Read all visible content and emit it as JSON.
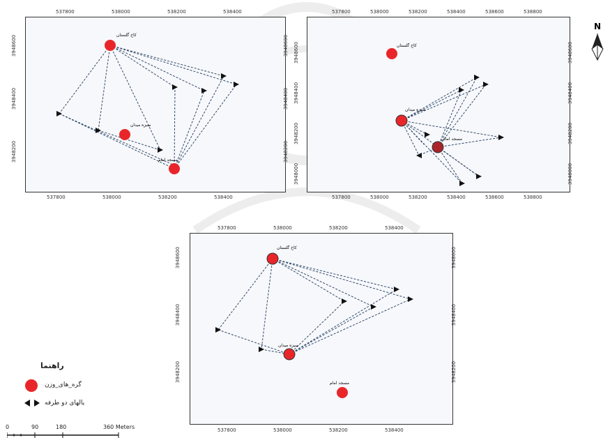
{
  "maps": [
    {
      "id": "top-left",
      "x_ticks_top": [
        "537800",
        "538000",
        "538200",
        "538400"
      ],
      "x_ticks_bottom": [
        "537800",
        "538000",
        "538200",
        "538400"
      ],
      "y_ticks_left": [
        "3948600",
        "3948400",
        "3948200"
      ],
      "y_ticks_right": [
        "3948600",
        "3948400",
        "3948200"
      ],
      "places": [
        {
          "label": "کاخ گلستان",
          "role": "node"
        },
        {
          "label": "سبزه میدان",
          "role": "node"
        },
        {
          "label": "مسجد امام",
          "role": "node"
        }
      ]
    },
    {
      "id": "top-right",
      "x_ticks_top": [
        "537800",
        "538000",
        "538200",
        "538400",
        "538600",
        "538800"
      ],
      "x_ticks_bottom": [
        "537800",
        "538000",
        "538200",
        "538400",
        "538600",
        "538800"
      ],
      "y_ticks_left": [
        "3948600",
        "3948400",
        "3948200",
        "3948000"
      ],
      "y_ticks_right": [
        "3948600",
        "3948400",
        "3948200",
        "3948000"
      ],
      "places": [
        {
          "label": "کاخ گلستان",
          "role": "node"
        },
        {
          "label": "سبزه میدان",
          "role": "node"
        },
        {
          "label": "مسجد امام",
          "role": "node"
        }
      ]
    },
    {
      "id": "bottom",
      "x_ticks_top": [
        "537800",
        "538000",
        "538200",
        "538400"
      ],
      "x_ticks_bottom": [
        "537800",
        "538000",
        "538200",
        "538400"
      ],
      "y_ticks_left": [
        "3948600",
        "3948400",
        "3948200"
      ],
      "y_ticks_right": [
        "3948600",
        "3948400",
        "3948200"
      ],
      "places": [
        {
          "label": "کاخ گلستان",
          "role": "node"
        },
        {
          "label": "سبزه میدان",
          "role": "node"
        },
        {
          "label": "مسجد امام",
          "role": "node"
        }
      ]
    }
  ],
  "legend": {
    "title": "راهنما",
    "items": [
      {
        "label": "گره_های_وزن",
        "symbol": "red-circle"
      },
      {
        "label": "یالهای دو طرفه",
        "symbol": "two-way-arrows"
      }
    ]
  },
  "scale_bar": {
    "labels": [
      "0",
      "90",
      "180",
      "360 Meters"
    ]
  },
  "north_arrow": {
    "label": "N",
    "icon": "north-arrow-icon"
  },
  "colors": {
    "node": "#e8262a",
    "edge": "#2f4a6b",
    "frame": "#333333",
    "background": "#f7f8fb"
  }
}
